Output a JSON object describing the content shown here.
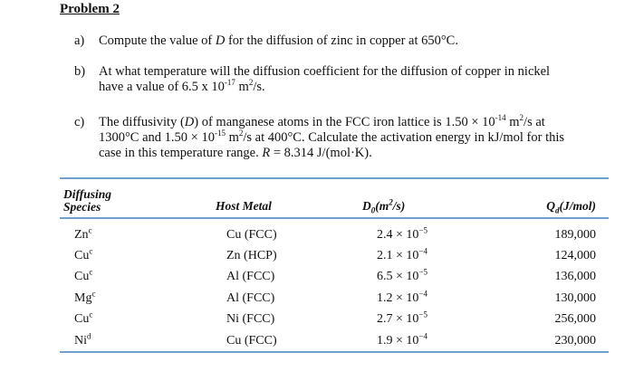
{
  "problem_title": "Problem 2",
  "questions": [
    {
      "label": "a)",
      "lines": [
        "Compute the value of D for the diffusion of zinc in copper at 650°C."
      ]
    },
    {
      "label": "b)",
      "lines": [
        "At what temperature will the diffusion coefficient for the diffusion of copper in nickel",
        "have a value of 6.5 x 10-17 m2/s."
      ]
    },
    {
      "label": "c)",
      "lines": [
        "The diffusivity (D) of manganese atoms in the FCC iron lattice is 1.50 × 10-14 m2/s at",
        "1300°C and 1.50 × 10-15 m2/s at 400°C. Calculate the activation energy in kJ/mol for this",
        "case in this temperature range. R = 8.314 J/(mol·K)."
      ]
    }
  ],
  "table": {
    "headers": {
      "species_line1": "Diffusing",
      "species_line2": "Species",
      "host": "Host Metal",
      "d0": "D0(m2/s)",
      "qd": "Qd(J/mol)"
    },
    "rows": [
      {
        "species": "Zn",
        "sup": "c",
        "host": "Cu (FCC)",
        "d0_mant": "2.4 × 10",
        "d0_exp": "−5",
        "qd": "189,000"
      },
      {
        "species": "Cu",
        "sup": "c",
        "host": "Zn (HCP)",
        "d0_mant": "2.1 × 10",
        "d0_exp": "−4",
        "qd": "124,000"
      },
      {
        "species": "Cu",
        "sup": "c",
        "host": "Al (FCC)",
        "d0_mant": "6.5 × 10",
        "d0_exp": "−5",
        "qd": "136,000"
      },
      {
        "species": "Mg",
        "sup": "c",
        "host": "Al (FCC)",
        "d0_mant": "1.2 × 10",
        "d0_exp": "−4",
        "qd": "130,000"
      },
      {
        "species": "Cu",
        "sup": "c",
        "host": "Ni (FCC)",
        "d0_mant": "2.7 × 10",
        "d0_exp": "−5",
        "qd": "256,000"
      },
      {
        "species": "Ni",
        "sup": "d",
        "host": "Cu (FCC)",
        "d0_mant": "1.9 × 10",
        "d0_exp": "−4",
        "qd": "230,000"
      }
    ]
  }
}
